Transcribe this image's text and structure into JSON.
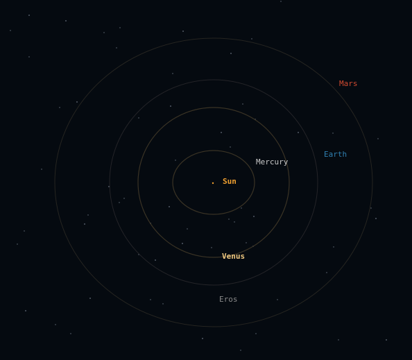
{
  "colors": {
    "background": "#050a10",
    "orbit": "#3a3325",
    "orbit_faint": "#262521",
    "star": "#6a7380"
  },
  "bodies": {
    "sun": {
      "label": "Sun",
      "color": "#f0a030"
    },
    "mercury": {
      "label": "Mercury",
      "color": "#c8c8c8"
    },
    "venus": {
      "label": "Venus",
      "color": "#f0c880"
    },
    "earth": {
      "label": "Earth",
      "color": "#2f7fb0"
    },
    "mars": {
      "label": "Mars",
      "color": "#d04a30"
    },
    "eros": {
      "label": "Eros",
      "color": "#8a8a8a"
    }
  }
}
